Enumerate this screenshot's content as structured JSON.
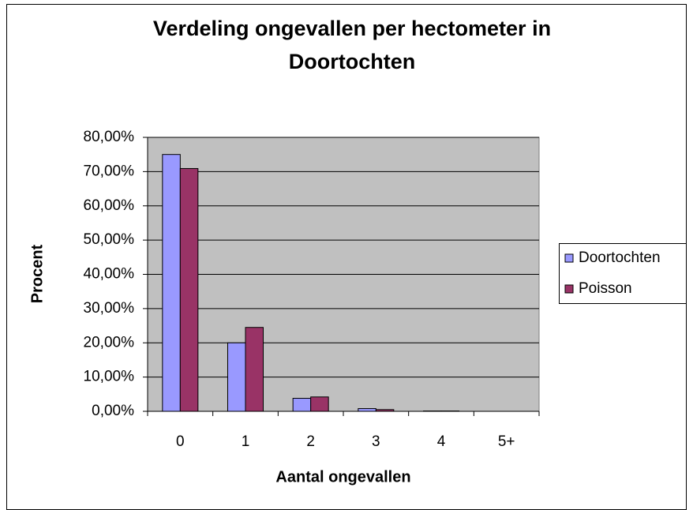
{
  "chart_data": {
    "type": "bar",
    "title": "Verdeling ongevallen per hectometer in Doortochten",
    "x_label": "Aantal ongevallen",
    "y_label": "Procent",
    "categories": [
      "0",
      "1",
      "2",
      "3",
      "4",
      "5+"
    ],
    "series": [
      {
        "name": "Doortochten",
        "color": "#9999ff",
        "values": [
          75,
          20,
          3.8,
          0.8,
          0.1,
          0
        ]
      },
      {
        "name": "Poisson",
        "color": "#993366",
        "values": [
          70.9,
          24.5,
          4.2,
          0.5,
          0.1,
          0
        ]
      }
    ],
    "ylim": [
      0,
      80
    ],
    "yticks": [
      {
        "value": 0,
        "label": "0,00%"
      },
      {
        "value": 10,
        "label": "10,00%"
      },
      {
        "value": 20,
        "label": "20,00%"
      },
      {
        "value": 30,
        "label": "30,00%"
      },
      {
        "value": 40,
        "label": "40,00%"
      },
      {
        "value": 50,
        "label": "50,00%"
      },
      {
        "value": 60,
        "label": "60,00%"
      },
      {
        "value": 70,
        "label": "70,00%"
      },
      {
        "value": 80,
        "label": "80,00%"
      }
    ],
    "grid": true,
    "legend": "right"
  }
}
